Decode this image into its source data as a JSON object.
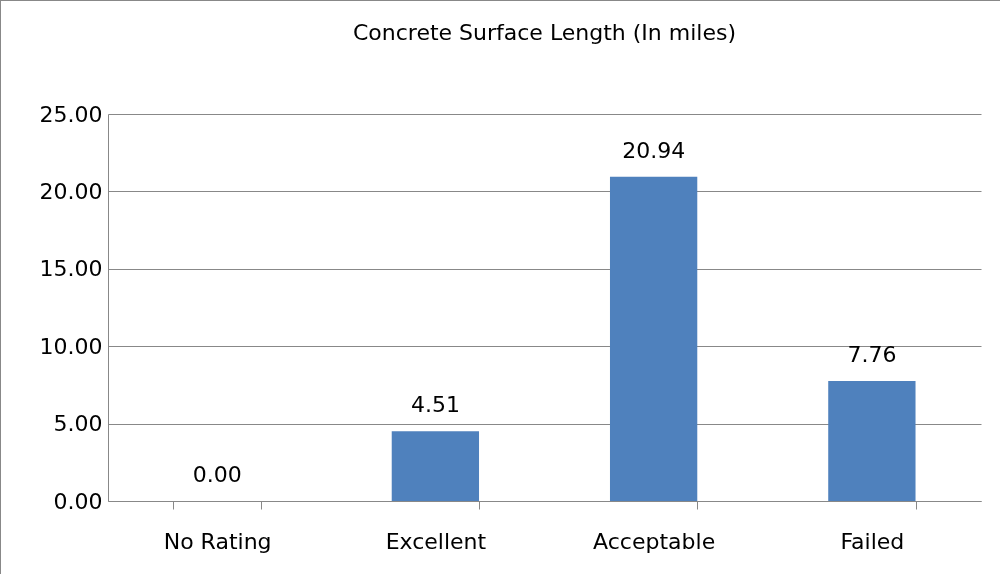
{
  "chart_data": {
    "type": "bar",
    "title": "Concrete Surface Length (In miles)",
    "categories": [
      "No Rating",
      "Excellent",
      "Acceptable",
      "Failed"
    ],
    "values": [
      0,
      4.51,
      20.94,
      7.76
    ],
    "value_labels": [
      "0.00",
      "4.51",
      "20.94",
      "7.76"
    ],
    "color": "#4f81bd",
    "ylim": [
      0,
      25
    ],
    "yticks": [
      {
        "value": 0,
        "label": "0.00"
      },
      {
        "value": 5,
        "label": "5.00"
      },
      {
        "value": 10,
        "label": "10.00"
      },
      {
        "value": 15,
        "label": "15.00"
      },
      {
        "value": 20,
        "label": "20.00"
      },
      {
        "value": 25,
        "label": "25.00"
      }
    ],
    "grid": "y"
  }
}
